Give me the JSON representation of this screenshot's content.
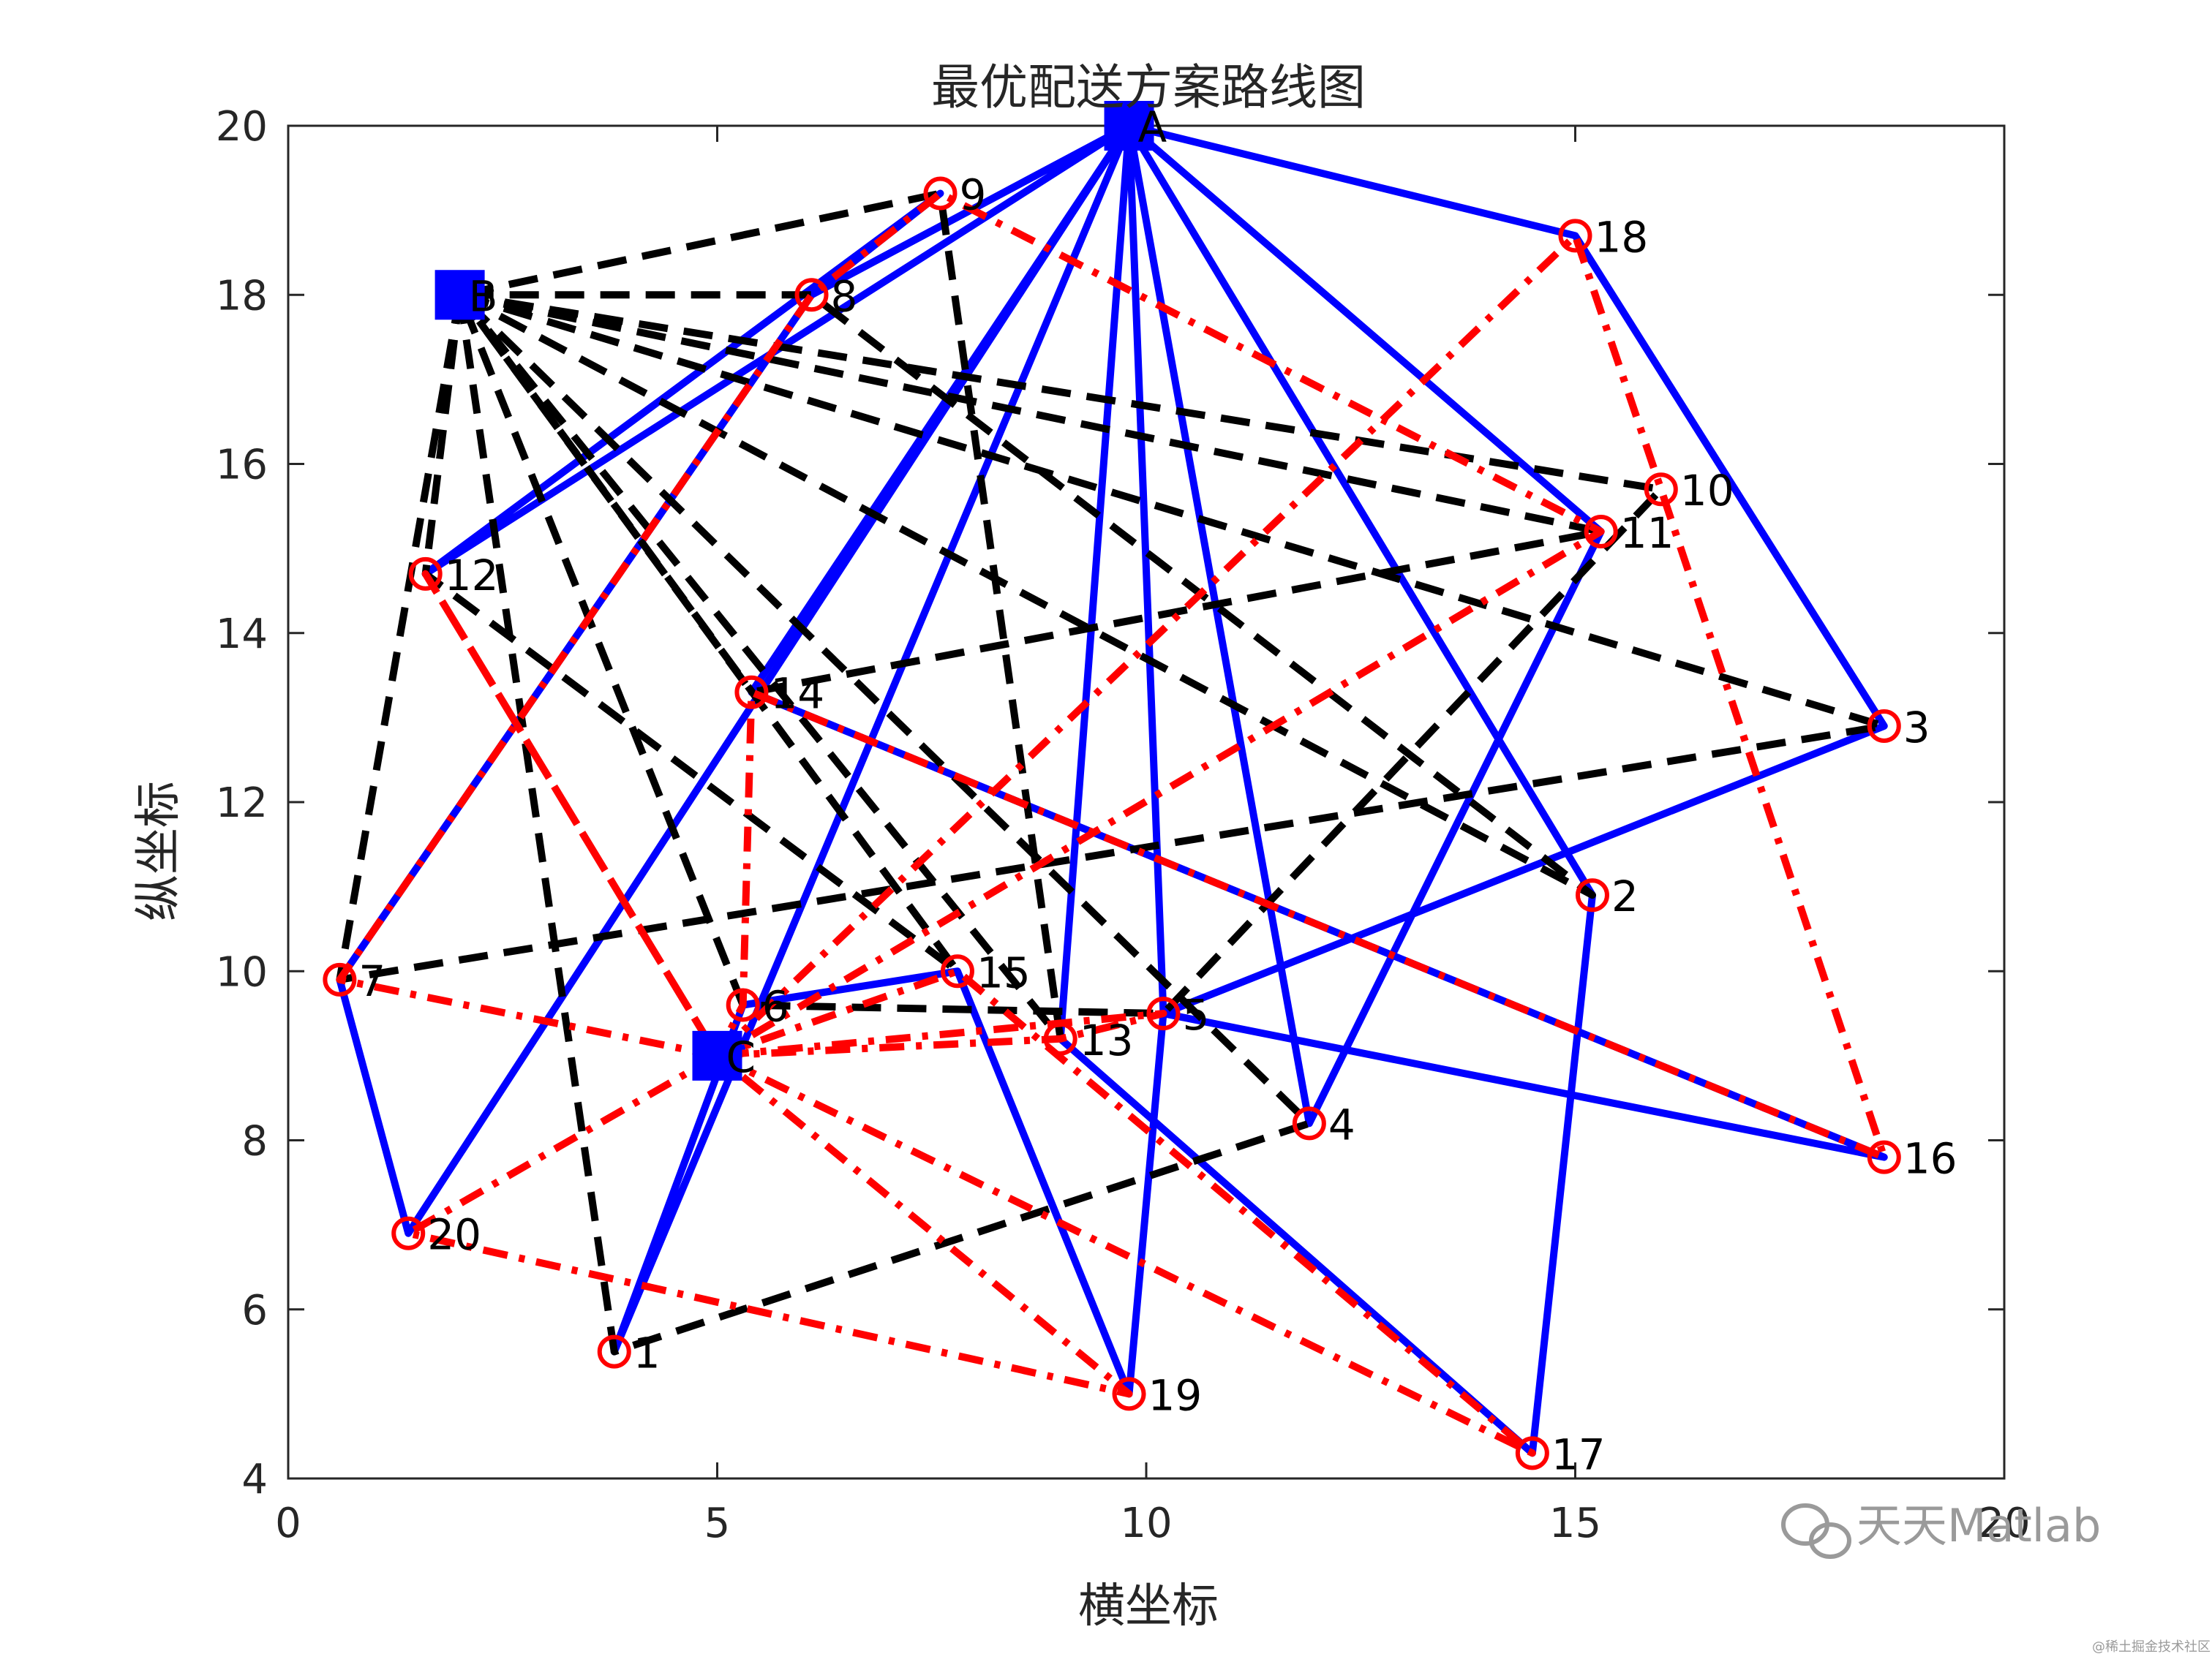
{
  "chart_data": {
    "type": "scatter",
    "title": "最优配送方案路线图",
    "xlabel": "横坐标",
    "ylabel": "纵坐标",
    "xlim": [
      0,
      20
    ],
    "ylim": [
      4,
      20
    ],
    "xticks": [
      0,
      5,
      10,
      15,
      20
    ],
    "yticks": [
      4,
      6,
      8,
      10,
      12,
      14,
      16,
      18,
      20
    ],
    "grid": false,
    "depots": [
      {
        "label": "A",
        "x": 9.8,
        "y": 20.0
      },
      {
        "label": "B",
        "x": 2.0,
        "y": 18.0
      },
      {
        "label": "C",
        "x": 5.0,
        "y": 9.0
      }
    ],
    "customers": [
      {
        "label": "1",
        "x": 3.8,
        "y": 5.5
      },
      {
        "label": "2",
        "x": 15.2,
        "y": 10.9
      },
      {
        "label": "3",
        "x": 18.6,
        "y": 12.9
      },
      {
        "label": "4",
        "x": 11.9,
        "y": 8.2
      },
      {
        "label": "5",
        "x": 10.2,
        "y": 9.5
      },
      {
        "label": "6",
        "x": 5.3,
        "y": 9.6
      },
      {
        "label": "7",
        "x": 0.6,
        "y": 9.9
      },
      {
        "label": "8",
        "x": 6.1,
        "y": 18.0
      },
      {
        "label": "9",
        "x": 7.6,
        "y": 19.2
      },
      {
        "label": "10",
        "x": 16.0,
        "y": 15.7
      },
      {
        "label": "11",
        "x": 15.3,
        "y": 15.2
      },
      {
        "label": "12",
        "x": 1.6,
        "y": 14.7
      },
      {
        "label": "13",
        "x": 9.0,
        "y": 9.2
      },
      {
        "label": "14",
        "x": 5.4,
        "y": 13.3
      },
      {
        "label": "15",
        "x": 7.8,
        "y": 10.0
      },
      {
        "label": "16",
        "x": 18.6,
        "y": 7.8
      },
      {
        "label": "17",
        "x": 14.5,
        "y": 4.3
      },
      {
        "label": "18",
        "x": 15.0,
        "y": 18.7
      },
      {
        "label": "19",
        "x": 9.8,
        "y": 5.0
      },
      {
        "label": "20",
        "x": 1.4,
        "y": 6.9
      }
    ],
    "series": [
      {
        "style": "solid",
        "color": "#0000ff",
        "routes": [
          [
            "A",
            "12",
            "9",
            "8",
            "A"
          ],
          [
            "A",
            "20",
            "7",
            "8",
            "A"
          ],
          [
            "A",
            "14",
            "16",
            "5",
            "3",
            "18",
            "A"
          ],
          [
            "A",
            "13",
            "17",
            "2",
            "A"
          ],
          [
            "A",
            "5",
            "19",
            "15",
            "6",
            "1",
            "A"
          ],
          [
            "A",
            "4",
            "11",
            "A"
          ]
        ]
      },
      {
        "style": "dashed",
        "color": "#000000",
        "routes": [
          [
            "B",
            "1",
            "4",
            "B"
          ],
          [
            "B",
            "12",
            "15",
            "B"
          ],
          [
            "B",
            "14",
            "11",
            "B"
          ],
          [
            "B",
            "13",
            "9",
            "B"
          ],
          [
            "B",
            "7",
            "3",
            "B"
          ],
          [
            "B",
            "2",
            "8",
            "B"
          ],
          [
            "B",
            "10",
            "5",
            "6",
            "B"
          ]
        ]
      },
      {
        "style": "dashdot",
        "color": "#ff0000",
        "routes": [
          [
            "C",
            "7",
            "8",
            "9",
            "11",
            "C"
          ],
          [
            "C",
            "12",
            "C"
          ],
          [
            "C",
            "20",
            "19",
            "C"
          ],
          [
            "C",
            "18",
            "10",
            "16",
            "14",
            "6",
            "C"
          ],
          [
            "C",
            "17",
            "15",
            "C"
          ],
          [
            "C",
            "13",
            "5",
            "C"
          ]
        ]
      }
    ]
  },
  "watermark": {
    "text": "天天Matlab",
    "small": "@稀土掘金技术社区",
    "icon": "wechat-icon"
  }
}
